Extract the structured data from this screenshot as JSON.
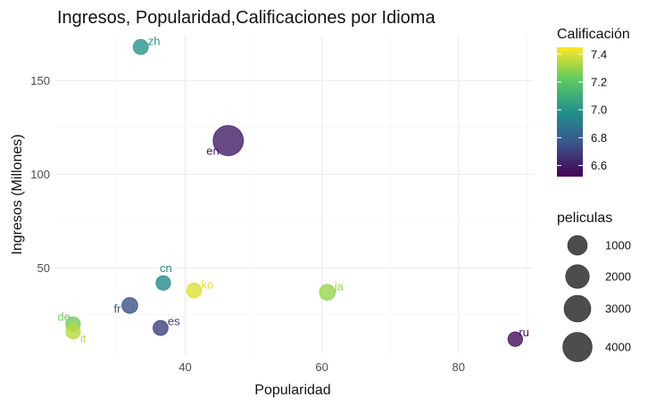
{
  "chart_data": {
    "type": "scatter",
    "title": "Ingresos, Popularidad,Calificaciones por Idioma",
    "xlabel": "Popularidad",
    "ylabel": "Ingresos  (Millones)",
    "xlim": [
      21,
      91
    ],
    "ylim": [
      4,
      174
    ],
    "x_ticks": [
      40,
      60,
      80
    ],
    "y_ticks": [
      50,
      100,
      150
    ],
    "grid": true,
    "points": [
      {
        "label": "zh",
        "x": 33.5,
        "y": 168,
        "calificacion": 7.0,
        "peliculas": 300
      },
      {
        "label": "en",
        "x": 46.3,
        "y": 118,
        "calificacion": 6.6,
        "peliculas": 4500
      },
      {
        "label": "ko",
        "x": 41.3,
        "y": 38,
        "calificacion": 7.4,
        "peliculas": 300
      },
      {
        "label": "ja",
        "x": 60.8,
        "y": 37,
        "calificacion": 7.3,
        "peliculas": 400
      },
      {
        "label": "cn",
        "x": 36.8,
        "y": 42,
        "calificacion": 6.95,
        "peliculas": 250
      },
      {
        "label": "fr",
        "x": 31.9,
        "y": 30,
        "calificacion": 6.75,
        "peliculas": 400
      },
      {
        "label": "es",
        "x": 36.4,
        "y": 18,
        "calificacion": 6.7,
        "peliculas": 300
      },
      {
        "label": "de",
        "x": 23.6,
        "y": 20,
        "calificacion": 7.25,
        "peliculas": 250
      },
      {
        "label": "it",
        "x": 23.6,
        "y": 16,
        "calificacion": 7.35,
        "peliculas": 250
      },
      {
        "label": "ru",
        "x": 88.3,
        "y": 12,
        "calificacion": 6.55,
        "peliculas": 250
      }
    ],
    "legend_color": {
      "title": "Calificación",
      "min": 6.52,
      "max": 7.45,
      "ticks": [
        6.6,
        6.8,
        7.0,
        7.2,
        7.4
      ],
      "tick_labels": [
        "6.6",
        "6.8",
        "7.0",
        "7.2",
        "7.4"
      ]
    },
    "legend_size": {
      "title": "peliculas",
      "values": [
        1000,
        2000,
        3000,
        4000
      ],
      "labels": [
        "1000",
        "2000",
        "3000",
        "4000"
      ]
    }
  }
}
